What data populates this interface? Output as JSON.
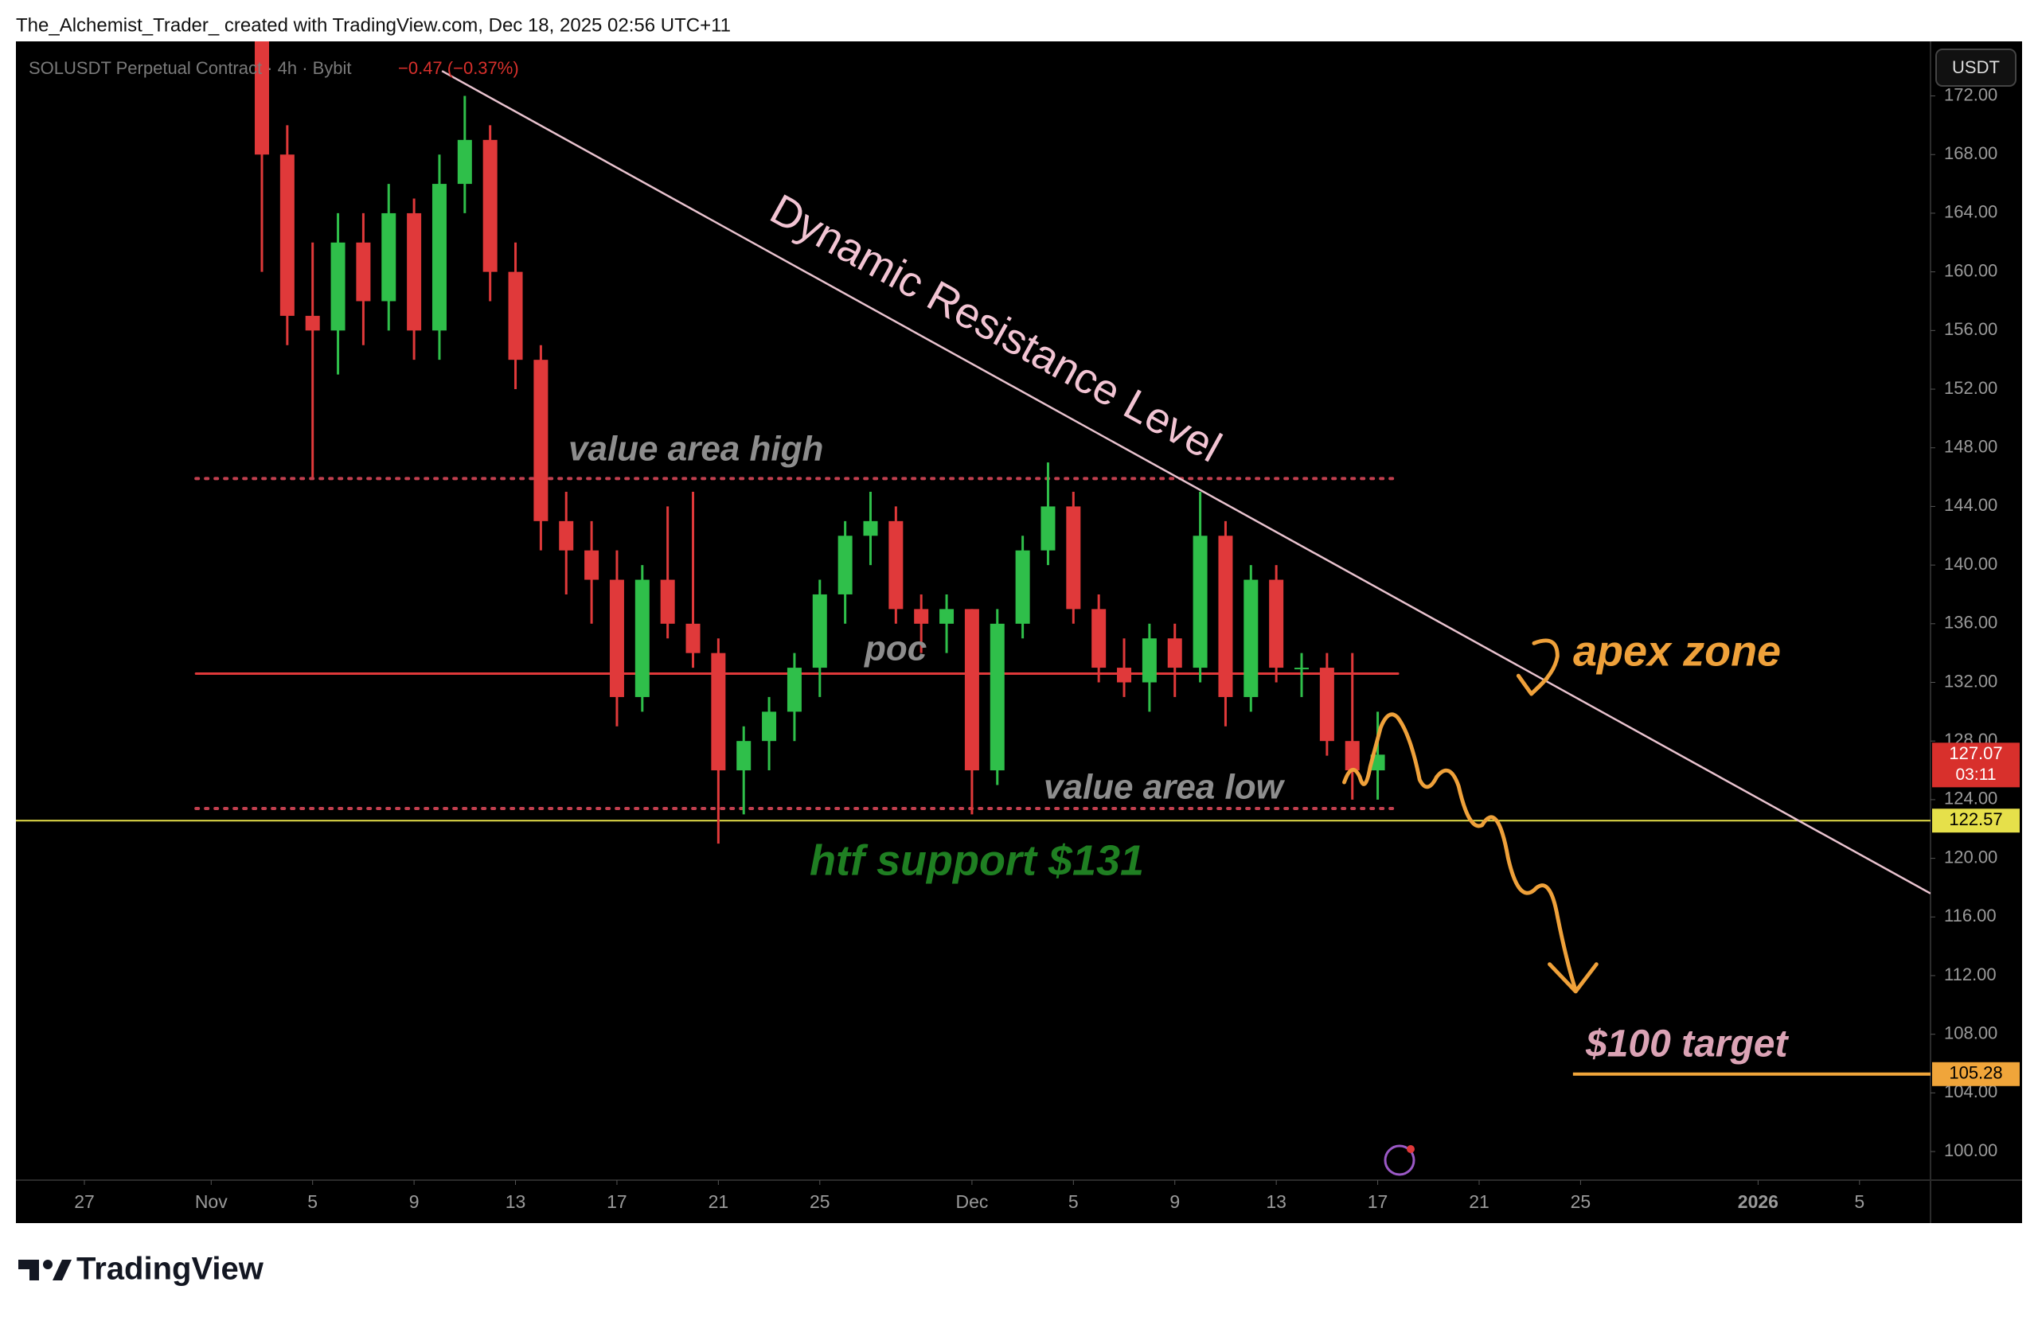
{
  "header": "The_Alchemist_Trader_ created with TradingView.com, Dec 18, 2025 02:56 UTC+11",
  "footer": "TradingView",
  "chart_data": {
    "type": "candlestick",
    "title": "SOLUSDT Perpetual Contract · 4h · Bybit",
    "change": "−0.47 (−0.37%)",
    "currency": "USDT",
    "x": [
      2,
      3,
      4,
      5,
      6,
      7,
      8,
      9,
      10,
      11,
      12,
      13,
      14,
      15,
      16,
      17,
      18,
      19,
      20,
      21,
      22,
      23,
      24,
      25,
      26,
      27,
      28,
      29,
      30,
      31,
      32,
      33,
      34,
      35,
      36,
      37,
      38,
      39,
      40,
      41,
      42,
      43,
      44,
      45,
      46
    ],
    "open": [
      176,
      168,
      157,
      156,
      162,
      158,
      164,
      156,
      166,
      169,
      160,
      154,
      143,
      141,
      139,
      131,
      139,
      136,
      134,
      126,
      128,
      130,
      133,
      138,
      142,
      143,
      137,
      136,
      137,
      126,
      136,
      141,
      144,
      137,
      133,
      132,
      135,
      133,
      142,
      131,
      139,
      133,
      133,
      128,
      126
    ],
    "high": [
      176,
      170,
      162,
      164,
      164,
      166,
      165,
      168,
      172,
      170,
      162,
      155,
      145,
      143,
      141,
      140,
      144,
      145,
      135,
      129,
      131,
      134,
      139,
      143,
      145,
      144,
      138,
      138,
      137,
      137,
      142,
      147,
      145,
      138,
      135,
      136,
      136,
      145,
      143,
      140,
      140,
      134,
      134,
      134,
      130
    ],
    "low": [
      160,
      155,
      146,
      153,
      155,
      156,
      154,
      154,
      164,
      158,
      152,
      141,
      138,
      136,
      129,
      130,
      135,
      133,
      121,
      123,
      126,
      128,
      131,
      136,
      140,
      136,
      134,
      134,
      123,
      125,
      135,
      140,
      136,
      132,
      131,
      130,
      131,
      132,
      129,
      130,
      132,
      131,
      127,
      124,
      124
    ],
    "close": [
      168,
      157,
      156,
      162,
      158,
      164,
      156,
      166,
      169,
      160,
      154,
      143,
      141,
      139,
      131,
      139,
      136,
      134,
      126,
      128,
      130,
      133,
      138,
      142,
      143,
      137,
      136,
      137,
      126,
      136,
      141,
      144,
      137,
      133,
      132,
      135,
      133,
      142,
      131,
      139,
      133,
      133,
      128,
      126,
      127.07
    ],
    "up_color": "#2fbf4a",
    "down_color": "#e0393a",
    "xlim": [
      -7.7,
      67.8
    ],
    "xticks": [
      {
        "value": -5,
        "label": "27"
      },
      {
        "value": 0,
        "label": "Nov"
      },
      {
        "value": 4,
        "label": "5"
      },
      {
        "value": 8,
        "label": "9"
      },
      {
        "value": 12,
        "label": "13"
      },
      {
        "value": 16,
        "label": "17"
      },
      {
        "value": 20,
        "label": "21"
      },
      {
        "value": 24,
        "label": "25"
      },
      {
        "value": 30,
        "label": "Dec"
      },
      {
        "value": 34,
        "label": "5"
      },
      {
        "value": 38,
        "label": "9"
      },
      {
        "value": 42,
        "label": "13"
      },
      {
        "value": 46,
        "label": "17"
      },
      {
        "value": 50,
        "label": "21"
      },
      {
        "value": 54,
        "label": "25"
      },
      {
        "value": 61,
        "label": "2026"
      },
      {
        "value": 65,
        "label": "5"
      }
    ],
    "ylim": [
      98.05,
      175.72
    ],
    "yticks": [
      {
        "value": 100,
        "label": "100.00"
      },
      {
        "value": 104,
        "label": "104.00"
      },
      {
        "value": 108,
        "label": "108.00"
      },
      {
        "value": 112,
        "label": "112.00"
      },
      {
        "value": 116,
        "label": "116.00"
      },
      {
        "value": 120,
        "label": "120.00"
      },
      {
        "value": 124,
        "label": "124.00"
      },
      {
        "value": 128,
        "label": "128.00"
      },
      {
        "value": 132,
        "label": "132.00"
      },
      {
        "value": 136,
        "label": "136.00"
      },
      {
        "value": 140,
        "label": "140.00"
      },
      {
        "value": 144,
        "label": "144.00"
      },
      {
        "value": 148,
        "label": "148.00"
      },
      {
        "value": 152,
        "label": "152.00"
      },
      {
        "value": 156,
        "label": "156.00"
      },
      {
        "value": 160,
        "label": "160.00"
      },
      {
        "value": 164,
        "label": "164.00"
      },
      {
        "value": 168,
        "label": "168.00"
      },
      {
        "value": 172,
        "label": "172.00"
      }
    ],
    "grid": false,
    "last_price": {
      "value": 127.07,
      "countdown": "03:11",
      "color": "#d8302c"
    },
    "levels": [
      {
        "label": "value area high",
        "value": 145.9,
        "style": "dotted",
        "color": "#c2404f"
      },
      {
        "label": "poc",
        "value": 132.6,
        "style": "solid",
        "color": "#e0393a"
      },
      {
        "label": "value area low",
        "value": 123.4,
        "style": "dotted",
        "color": "#c2404f"
      }
    ],
    "level_span": [
      -0.6,
      46.8
    ],
    "support": {
      "value": 122.57,
      "color": "#e6e04a"
    },
    "target": {
      "value": 105.28,
      "label": "$100 target",
      "color": "#f0a53a",
      "start": 53.7
    },
    "trendline": {
      "label": "Dynamic Resistance Level",
      "x": [
        9.1,
        67.8
      ],
      "y": [
        173.7,
        117.6
      ],
      "color": "#e9c3cf"
    },
    "annotations": [
      "htf support $131",
      "apex zone"
    ]
  }
}
